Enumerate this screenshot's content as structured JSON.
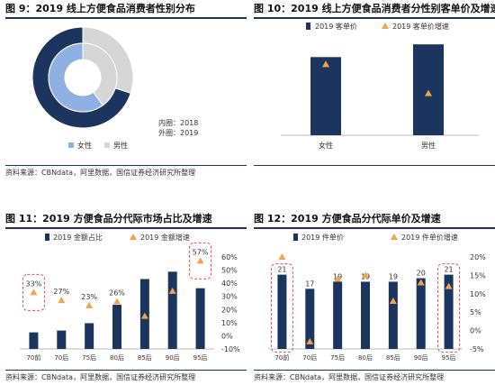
{
  "colors": {
    "navy": "#1b355e",
    "light_blue": "#8fb0e3",
    "grey": "#d6d6d6",
    "orange": "#f0a54b",
    "dash_red": "#e0524a"
  },
  "panels": [
    {
      "title": "图 9：2019 线上方便食品消费者性别分布",
      "source": "资料来源：CBNdata，阿里数据，国信证券经济研究所整理"
    },
    {
      "title": "图 10：2019 线上方便食品消费者分性别客单价及增速",
      "source": ""
    },
    {
      "title": "图 11：2019 方便食品分代际市场占比及增速",
      "source": "资料来源：CBNdata，阿里数据，国信证券经济研究所整理"
    },
    {
      "title": "图 12：2019 方便食品分代际单价及增速",
      "source": "资料来源：CBNdata，阿里数据，国信证券经济研究所整理"
    }
  ],
  "chart_data": [
    {
      "type": "pie",
      "title": "图 9：2019 线上方便食品消费者性别分布",
      "legend": [
        "女性",
        "男性"
      ],
      "annotation": [
        "内圈：2018",
        "外圈：2019"
      ],
      "rings": [
        {
          "name": "外圈：2019",
          "values": [
            {
              "label": "女性",
              "value": 70
            },
            {
              "label": "男性",
              "value": 30
            }
          ]
        },
        {
          "name": "内圈：2018",
          "values": [
            {
              "label": "女性",
              "value": 60
            },
            {
              "label": "男性",
              "value": 40
            }
          ]
        }
      ]
    },
    {
      "type": "bar",
      "title": "图 10：2019 线上方便食品消费者分性别客单价及增速",
      "categories": [
        "女性",
        "男性"
      ],
      "series": [
        {
          "name": "2019 客单价",
          "kind": "bar",
          "values": [
            86,
            100
          ]
        },
        {
          "name": "2019 客单价增速",
          "kind": "marker",
          "values": [
            78,
            46
          ]
        }
      ],
      "ylim": [
        0,
        150
      ]
    },
    {
      "type": "bar",
      "title": "图 11：2019 方便食品分代际市场占比及增速",
      "categories": [
        "70前",
        "70后",
        "75后",
        "80后",
        "85后",
        "90后",
        "95后"
      ],
      "series": [
        {
          "name": "2019 金额占比",
          "kind": "bar",
          "axis": "left",
          "values": [
            0.9,
            1.0,
            1.4,
            2.4,
            3.8,
            4.2,
            3.3
          ]
        },
        {
          "name": "2019 金额增速",
          "kind": "marker",
          "axis": "right",
          "values": [
            33,
            27,
            23,
            26,
            15,
            34,
            57
          ],
          "labels": [
            "33%",
            "27%",
            "23%",
            "26%",
            "",
            "",
            "57%"
          ]
        }
      ],
      "y2lim": [
        -10,
        60
      ],
      "y2ticks": [
        "60%",
        "50%",
        "40%",
        "30%",
        "20%",
        "10%",
        "0%",
        "-10%"
      ],
      "highlight_categories": [
        "70前",
        "95后"
      ]
    },
    {
      "type": "bar",
      "title": "图 12：2019 方便食品分代际单价及增速",
      "categories": [
        "70前",
        "70后",
        "75后",
        "80后",
        "85后",
        "90后",
        "95后"
      ],
      "series": [
        {
          "name": "2019 件单价",
          "kind": "bar",
          "axis": "left",
          "values": [
            21,
            17,
            19,
            19,
            19,
            20,
            21
          ],
          "labels": [
            "21",
            "17",
            "19",
            "19",
            "19",
            "20",
            "21"
          ]
        },
        {
          "name": "2019 件单价增速",
          "kind": "marker",
          "axis": "right",
          "values": [
            20,
            -3,
            14,
            15,
            8,
            13,
            12
          ]
        }
      ],
      "y2lim": [
        -5,
        20
      ],
      "y2ticks": [
        "20%",
        "15%",
        "10%",
        "5%",
        "0%",
        "-5%"
      ],
      "highlight_categories": [
        "70前",
        "95后"
      ]
    }
  ]
}
